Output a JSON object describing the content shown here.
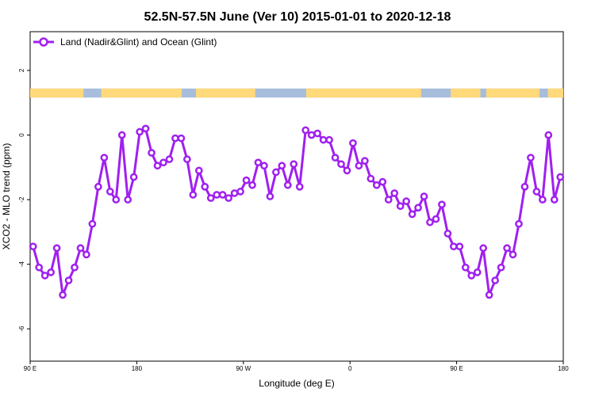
{
  "chart_data": {
    "type": "line",
    "title": "52.5N-57.5N June (Ver 10)   2015-01-01 to 2020-12-18",
    "xlabel": "Longitude (deg E)",
    "ylabel": "XCO2 - MLO trend (ppm)",
    "xlim": [
      90,
      540
    ],
    "ylim": [
      -7.0,
      3.2
    ],
    "x_ticks": [
      {
        "value": 90,
        "label": "90 E"
      },
      {
        "value": 180,
        "label": "180"
      },
      {
        "value": 270,
        "label": "90 W"
      },
      {
        "value": 360,
        "label": "0"
      },
      {
        "value": 450,
        "label": "90 E"
      },
      {
        "value": 540,
        "label": "180"
      }
    ],
    "y_ticks": [
      {
        "value": 2,
        "label": "2"
      },
      {
        "value": 0,
        "label": "0"
      },
      {
        "value": -2,
        "label": "-2"
      },
      {
        "value": -4,
        "label": "-4"
      },
      {
        "value": -6,
        "label": "-6"
      }
    ],
    "land_ocean_strip": {
      "y_center": 1.3,
      "thickness": 0.28,
      "land_color": "#FFD97A",
      "ocean_color": "#A7BDDC",
      "land_ranges": [
        [
          90,
          135
        ],
        [
          150,
          218
        ],
        [
          230,
          280
        ],
        [
          323,
          420
        ],
        [
          445,
          470
        ],
        [
          475,
          520
        ],
        [
          527,
          540
        ]
      ]
    },
    "series": [
      {
        "name": "Land (Nadir&Glint) and Ocean (Glint)",
        "color": "#A020F0",
        "x": [
          92.5,
          97.5,
          102.5,
          107.5,
          112.5,
          117.5,
          122.5,
          127.5,
          132.5,
          137.5,
          142.5,
          147.5,
          152.5,
          157.5,
          162.5,
          167.5,
          172.5,
          177.5,
          182.5,
          187.5,
          192.5,
          197.5,
          202.5,
          207.5,
          212.5,
          217.5,
          222.5,
          227.5,
          232.5,
          237.5,
          242.5,
          247.5,
          252.5,
          257.5,
          262.5,
          267.5,
          272.5,
          277.5,
          282.5,
          287.5,
          292.5,
          297.5,
          302.5,
          307.5,
          312.5,
          317.5,
          322.5,
          327.5,
          332.5,
          337.5,
          342.5,
          347.5,
          352.5,
          357.5,
          362.5,
          367.5,
          372.5,
          377.5,
          382.5,
          387.5,
          392.5,
          397.5,
          402.5,
          407.5,
          412.5,
          417.5,
          422.5,
          427.5,
          432.5,
          437.5,
          442.5,
          447.5,
          452.5,
          457.5,
          462.5,
          467.5,
          472.5,
          477.5,
          482.5,
          487.5,
          492.5,
          497.5,
          502.5,
          507.5,
          512.5,
          517.5,
          522.5,
          527.5,
          532.5,
          537.5
        ],
        "values": [
          -3.45,
          -4.1,
          -4.35,
          -4.25,
          -3.5,
          -4.95,
          -4.5,
          -4.1,
          -3.5,
          -3.7,
          -2.75,
          -1.6,
          -0.7,
          -1.75,
          -2.0,
          0.0,
          -2.0,
          -1.3,
          0.1,
          0.2,
          -0.55,
          -0.95,
          -0.85,
          -0.75,
          -0.1,
          -0.1,
          -0.75,
          -1.85,
          -1.1,
          -1.6,
          -1.95,
          -1.85,
          -1.85,
          -1.95,
          -1.8,
          -1.75,
          -1.4,
          -1.55,
          -0.85,
          -0.95,
          -1.9,
          -1.15,
          -0.95,
          -1.55,
          -0.9,
          -1.6,
          0.15,
          0.0,
          0.05,
          -0.15,
          -0.15,
          -0.7,
          -0.9,
          -1.1,
          -0.25,
          -0.95,
          -0.8,
          -1.35,
          -1.55,
          -1.45,
          -2.0,
          -1.8,
          -2.2,
          -2.05,
          -2.45,
          -2.25,
          -1.9,
          -2.7,
          -2.6,
          -2.15,
          -3.05,
          -3.45,
          -3.45,
          -4.1,
          -4.35,
          -4.25,
          -3.5,
          -4.95,
          -4.5,
          -4.1,
          -3.5,
          -3.7,
          -2.75,
          -1.6,
          -0.7,
          -1.75,
          -2.0,
          0.0,
          -2.0,
          -1.3
        ]
      }
    ],
    "legend_position": "top-left",
    "grid": false
  }
}
